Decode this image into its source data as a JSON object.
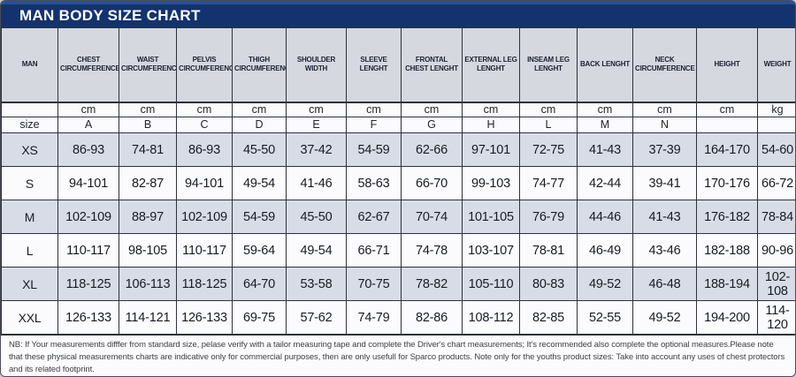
{
  "title": "MAN BODY SIZE CHART",
  "colors": {
    "navy": "#14336e",
    "navy_light": "#2a5094",
    "header_bg": "#d6d8df",
    "alt_row": "#d8dce6",
    "white_row": "#fbfbfd",
    "border": "#2e313c"
  },
  "table": {
    "corner_label": "MAN",
    "size_label": "size",
    "columns": [
      {
        "header": "CHEST CIRCUMFERENCE",
        "unit": "cm",
        "letter": "A"
      },
      {
        "header": "WAIST CIRCUMFERENCE",
        "unit": "cm",
        "letter": "B"
      },
      {
        "header": "PELVIS CIRCUMFERENCE",
        "unit": "cm",
        "letter": "C"
      },
      {
        "header": "THIGH CIRCUMFERENCE",
        "unit": "cm",
        "letter": "D"
      },
      {
        "header": "SHOULDER WIDTH",
        "unit": "cm",
        "letter": "E"
      },
      {
        "header": "SLEEVE LENGHT",
        "unit": "cm",
        "letter": "F"
      },
      {
        "header": "FRONTAL CHEST LENGHT",
        "unit": "cm",
        "letter": "G"
      },
      {
        "header": "EXTERNAL LEG LENGHT",
        "unit": "cm",
        "letter": "H"
      },
      {
        "header": "INSEAM LEG LENGHT",
        "unit": "cm",
        "letter": "L"
      },
      {
        "header": "BACK LENGHT",
        "unit": "cm",
        "letter": "M"
      },
      {
        "header": "NECK CIRCUMFERENCE",
        "unit": "cm",
        "letter": "N"
      },
      {
        "header": "HEIGHT",
        "unit": "cm",
        "letter": ""
      },
      {
        "header": "WEIGHT",
        "unit": "kg",
        "letter": ""
      }
    ],
    "rows": [
      {
        "size": "XS",
        "values": [
          "86-93",
          "74-81",
          "86-93",
          "45-50",
          "37-42",
          "54-59",
          "62-66",
          "97-101",
          "72-75",
          "41-43",
          "37-39",
          "164-170",
          "54-60"
        ]
      },
      {
        "size": "S",
        "values": [
          "94-101",
          "82-87",
          "94-101",
          "49-54",
          "41-46",
          "58-63",
          "66-70",
          "99-103",
          "74-77",
          "42-44",
          "39-41",
          "170-176",
          "66-72"
        ]
      },
      {
        "size": "M",
        "values": [
          "102-109",
          "88-97",
          "102-109",
          "54-59",
          "45-50",
          "62-67",
          "70-74",
          "101-105",
          "76-79",
          "44-46",
          "41-43",
          "176-182",
          "78-84"
        ]
      },
      {
        "size": "L",
        "values": [
          "110-117",
          "98-105",
          "110-117",
          "59-64",
          "49-54",
          "66-71",
          "74-78",
          "103-107",
          "78-81",
          "46-49",
          "43-46",
          "182-188",
          "90-96"
        ]
      },
      {
        "size": "XL",
        "values": [
          "118-125",
          "106-113",
          "118-125",
          "64-70",
          "53-58",
          "70-75",
          "78-82",
          "105-110",
          "80-83",
          "49-52",
          "46-48",
          "188-194",
          "102-108"
        ]
      },
      {
        "size": "XXL",
        "values": [
          "126-133",
          "114-121",
          "126-133",
          "69-75",
          "57-62",
          "74-79",
          "82-86",
          "108-112",
          "82-85",
          "52-55",
          "49-52",
          "194-200",
          "114-120"
        ]
      }
    ]
  },
  "footer_note": "NB: If Your measurements difffer from standard size, pelase verify with a tailor measuring tape and complete the Driver's chart measurements; It's recommended also complete the optional measures.Please note that these physical measurements charts are indicative only for commercial purposes, then are only usefull for Sparco products. Note only for the youths product sizes: Take into account any uses of chest protectors and its related footprint."
}
